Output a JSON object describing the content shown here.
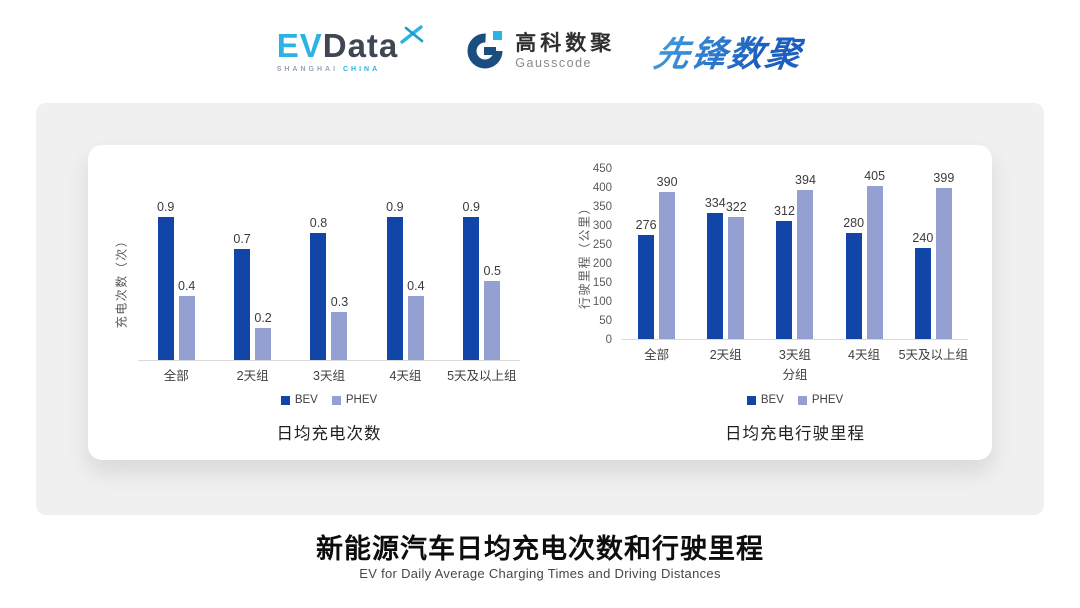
{
  "header": {
    "evdata": {
      "ev": "EV",
      "data": "Data",
      "sub_left": "SHANGHAI",
      "sub_right": "CHINA"
    },
    "gausscode": {
      "cn": "高科数聚",
      "en": "Gausscode"
    },
    "xianfeng": {
      "text": "先锋数聚"
    }
  },
  "colors": {
    "bev": "#1245a8",
    "phev": "#94a0d2",
    "panel_bg": "#f0f0f0",
    "card_bg": "#ffffff",
    "evdata_blue": "#2cb3e3",
    "evdata_dark": "#3f4654",
    "gauss_dark": "#1b4e80",
    "gauss_light": "#2eb3e2",
    "xianfeng_blue": "#2574c8"
  },
  "chart_data": [
    {
      "type": "bar",
      "title": "日均充电次数",
      "ylabel": "充电次数（次）",
      "xlabel": "",
      "categories": [
        "全部",
        "2天组",
        "3天组",
        "4天组",
        "5天及以上组"
      ],
      "series": [
        {
          "name": "BEV",
          "color": "#1245a8",
          "values": [
            0.9,
            0.7,
            0.8,
            0.9,
            0.9
          ]
        },
        {
          "name": "PHEV",
          "color": "#94a0d2",
          "values": [
            0.4,
            0.2,
            0.3,
            0.4,
            0.5
          ]
        }
      ],
      "ymax": 1.0,
      "yticks": null,
      "grid": false,
      "legend_position": "bottom",
      "value_labels": true
    },
    {
      "type": "bar",
      "title": "日均充电行驶里程",
      "ylabel": "行驶里程（公里）",
      "xlabel": "分组",
      "categories": [
        "全部",
        "2天组",
        "3天组",
        "4天组",
        "5天及以上组"
      ],
      "series": [
        {
          "name": "BEV",
          "color": "#1245a8",
          "values": [
            276,
            334,
            312,
            280,
            240
          ]
        },
        {
          "name": "PHEV",
          "color": "#94a0d2",
          "values": [
            390,
            322,
            394,
            405,
            399
          ]
        }
      ],
      "ymax": 450,
      "yticks": [
        0,
        50,
        100,
        150,
        200,
        250,
        300,
        350,
        400,
        450
      ],
      "grid": false,
      "legend_position": "bottom",
      "value_labels": true
    }
  ],
  "footer": {
    "title": "新能源汽车日均充电次数和行驶里程",
    "subtitle": "EV for Daily Average Charging Times and Driving Distances"
  }
}
